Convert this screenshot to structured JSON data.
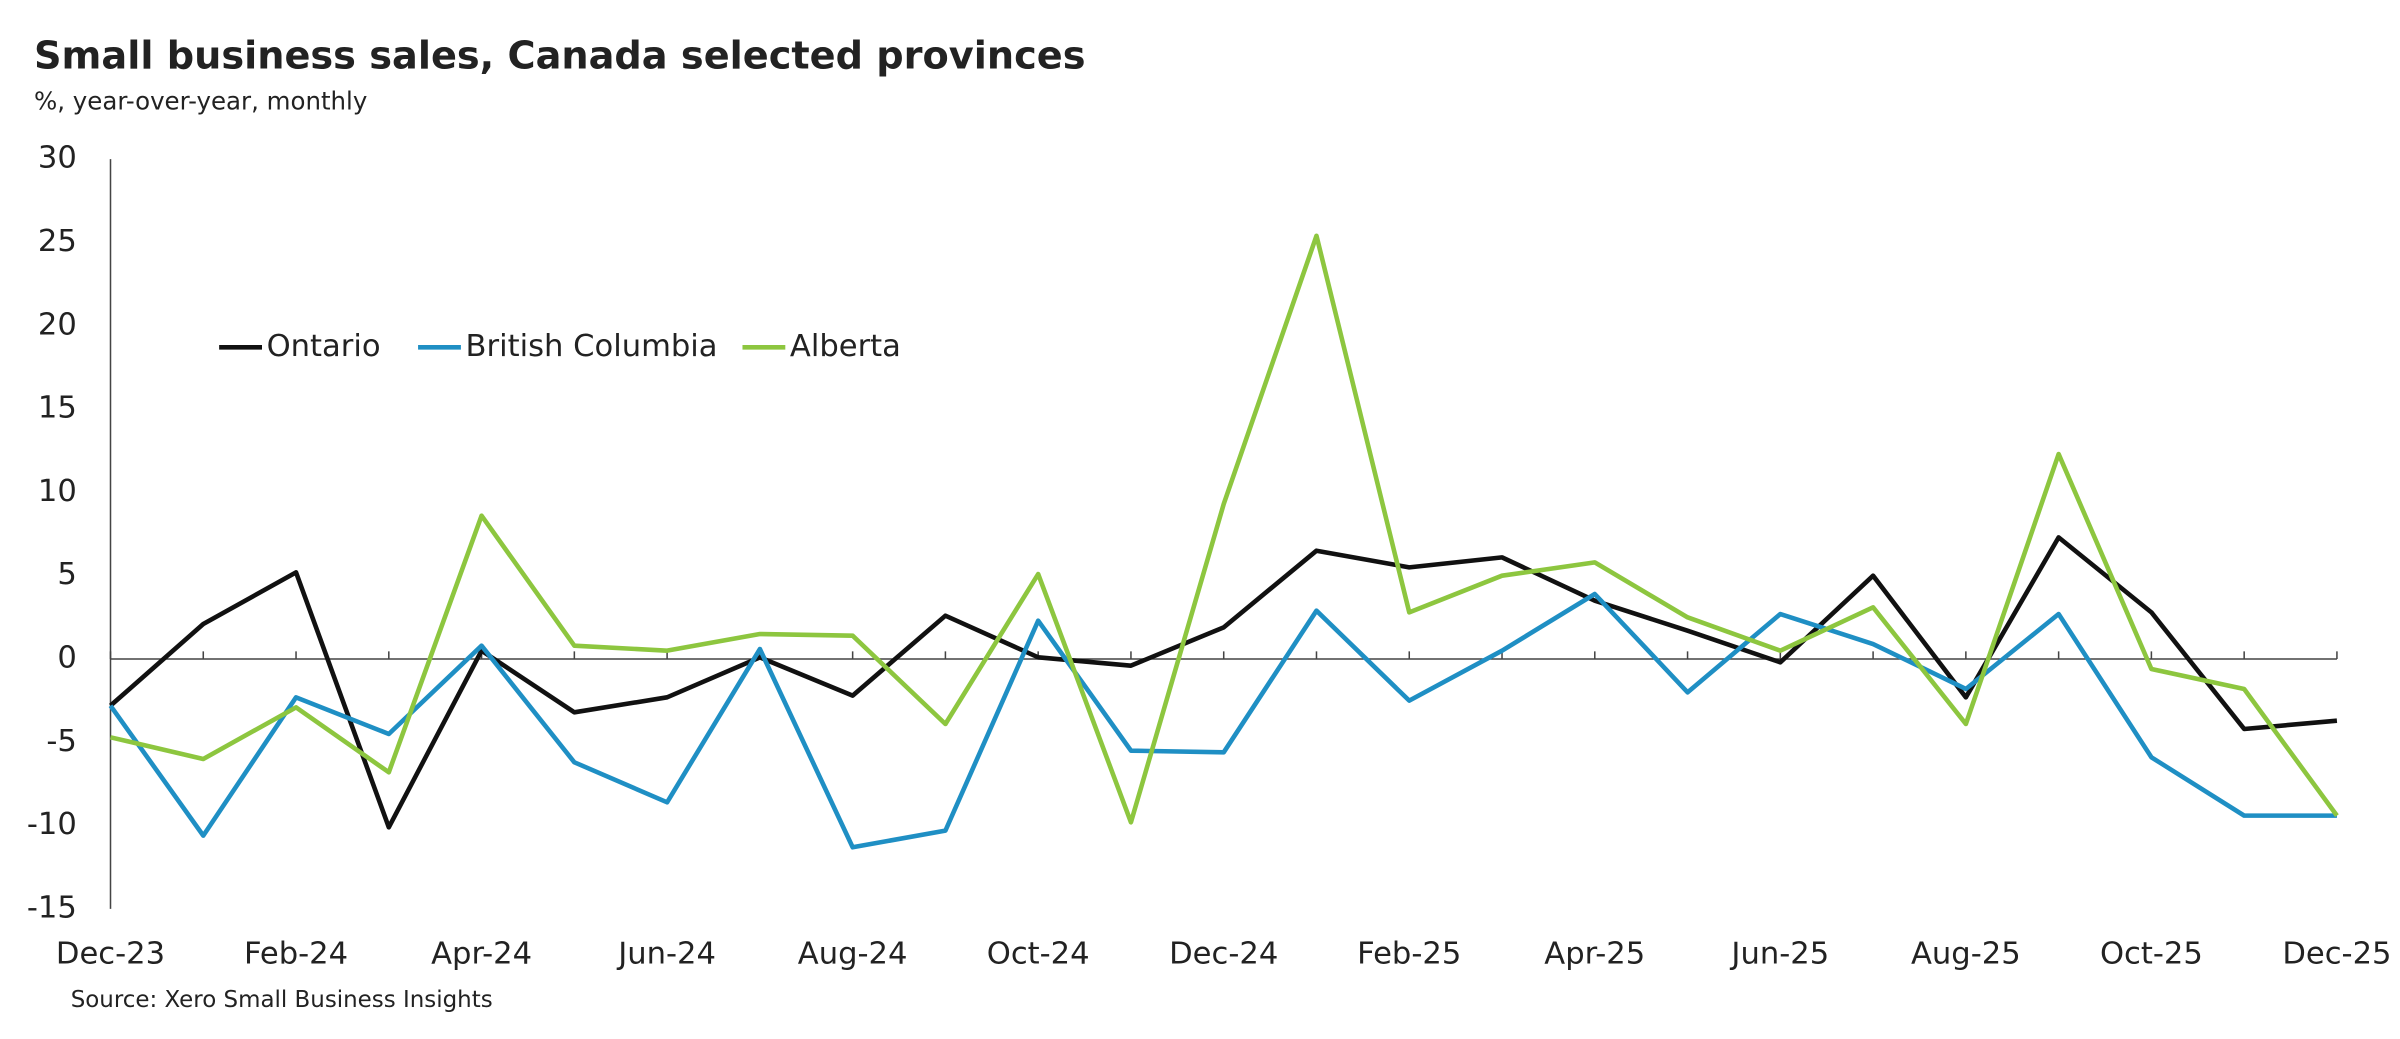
{
  "chart_data": {
    "type": "line",
    "title": "Small business sales, Canada selected provinces",
    "subtitle": "%, year-over-year, monthly",
    "source": "Source: Xero Small Business Insights",
    "categories": [
      "Dec-23",
      null,
      "Feb-24",
      null,
      "Apr-24",
      null,
      "Jun-24",
      null,
      "Aug-24",
      null,
      "Oct-24",
      null,
      "Dec-24",
      null,
      "Feb-25",
      null,
      "Apr-25",
      null,
      "Jun-25",
      null,
      "Aug-25",
      null,
      "Oct-25",
      null,
      "Dec-25"
    ],
    "series": [
      {
        "name": "Ontario",
        "color": "#111111",
        "values": [
          -2.8,
          2.1,
          5.2,
          -10.1,
          0.5,
          -3.2,
          -2.3,
          0.1,
          -2.2,
          2.6,
          0.1,
          -0.4,
          1.9,
          6.5,
          5.5,
          6.1,
          3.5,
          1.7,
          -0.2,
          5.0,
          -2.3,
          7.3,
          2.8,
          -4.2,
          -3.7
        ]
      },
      {
        "name": "British Columbia",
        "color": "#1f8fc4",
        "values": [
          -2.8,
          -10.6,
          -2.3,
          -4.5,
          0.8,
          -6.2,
          -8.6,
          0.6,
          -11.3,
          -10.3,
          2.3,
          -5.5,
          -5.6,
          2.9,
          -2.5,
          0.5,
          3.9,
          -2.0,
          2.7,
          0.9,
          -1.8,
          2.7,
          -5.9,
          -9.4,
          -9.4
        ]
      },
      {
        "name": "Alberta",
        "color": "#8dc63f",
        "values": [
          -4.7,
          -6.0,
          -2.9,
          -6.8,
          8.6,
          0.8,
          0.5,
          1.5,
          1.4,
          -3.9,
          5.1,
          -9.8,
          9.3,
          25.4,
          2.8,
          5.0,
          5.8,
          2.5,
          0.5,
          3.1,
          -3.9,
          12.3,
          -0.6,
          -1.8,
          -9.4
        ]
      }
    ],
    "ylim": [
      -15,
      30
    ],
    "yticks": [
      -15,
      -10,
      -5,
      0,
      5,
      10,
      15,
      20,
      25,
      30
    ],
    "grid": false,
    "legend": "upper left"
  }
}
